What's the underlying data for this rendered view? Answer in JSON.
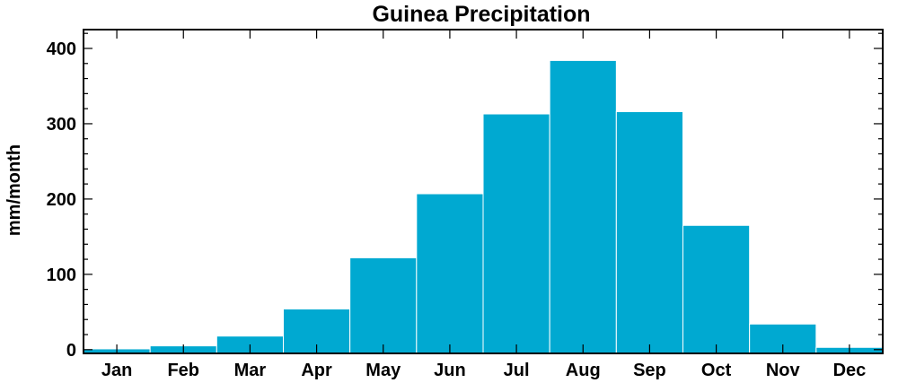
{
  "chart_data": {
    "type": "bar",
    "title": "Guinea Precipitation",
    "xlabel": "",
    "ylabel": "mm/month",
    "categories": [
      "Jan",
      "Feb",
      "Mar",
      "Apr",
      "May",
      "Jun",
      "Jul",
      "Aug",
      "Sep",
      "Oct",
      "Nov",
      "Dec"
    ],
    "values": [
      1,
      5,
      18,
      54,
      122,
      207,
      313,
      384,
      316,
      165,
      34,
      3
    ],
    "ylim": [
      -5,
      425
    ],
    "yticks": [
      0,
      100,
      200,
      300,
      400
    ],
    "bar_color": "#00a9d1",
    "grid": false
  }
}
